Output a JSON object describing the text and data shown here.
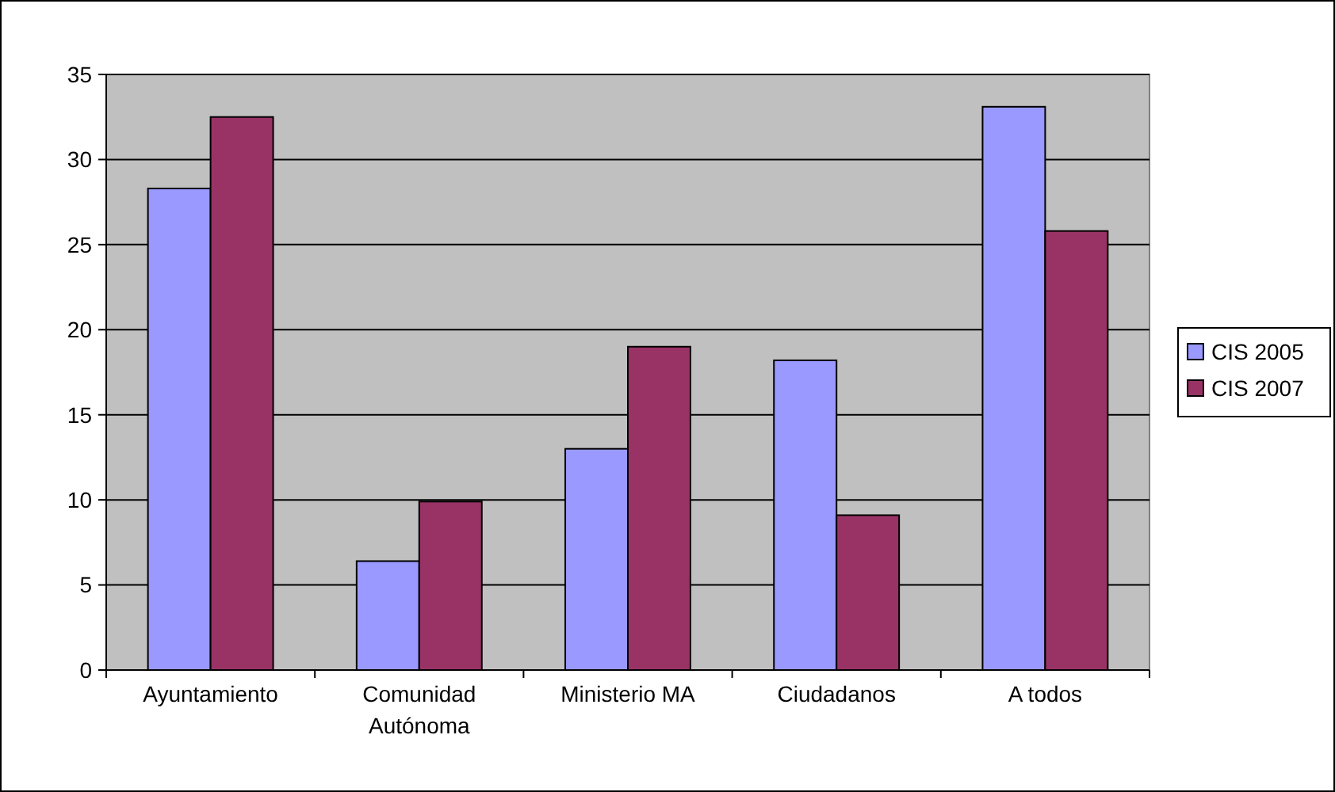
{
  "chart_data": {
    "type": "bar",
    "categories": [
      "Ayuntamiento",
      "Comunidad Autónoma",
      "Ministerio MA",
      "Ciudadanos",
      "A todos"
    ],
    "series": [
      {
        "name": "CIS 2005",
        "color": "#9999ff",
        "values": [
          28.3,
          6.4,
          13,
          18.2,
          33.1
        ]
      },
      {
        "name": "CIS 2007",
        "color": "#993366",
        "values": [
          32.5,
          9.9,
          19,
          9.1,
          25.8
        ]
      }
    ],
    "ylim": [
      0,
      35
    ],
    "yticks": [
      0,
      5,
      10,
      15,
      20,
      25,
      30,
      35
    ],
    "grid": "y",
    "legend": "right"
  }
}
